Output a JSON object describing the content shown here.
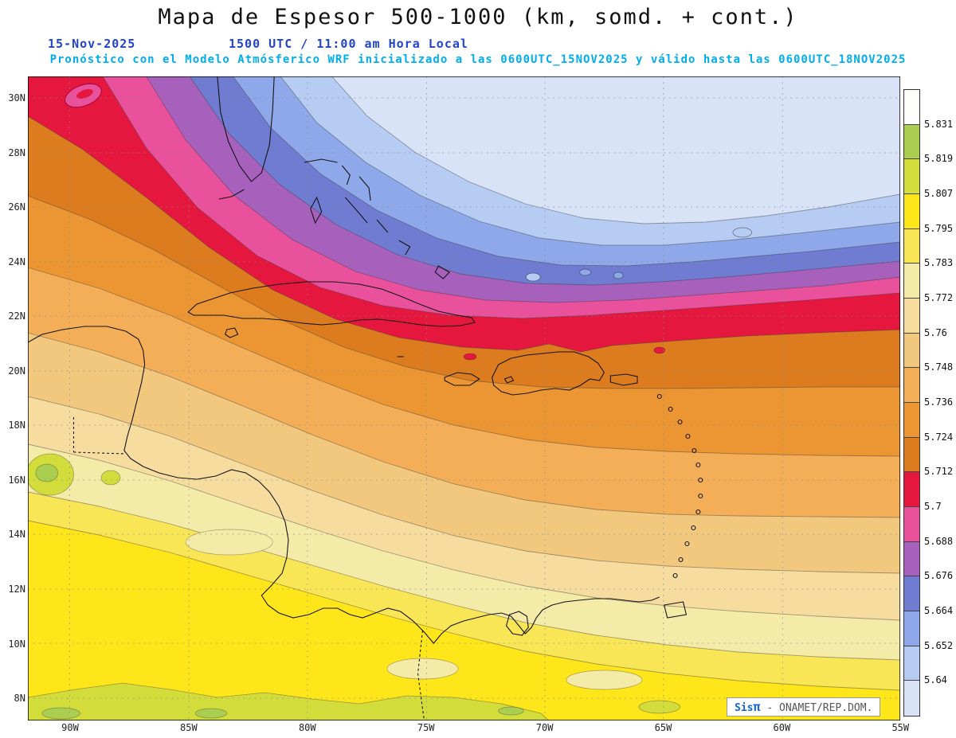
{
  "header": {
    "title": "Mapa de Espesor 500-1000 (km, somd. + cont.)",
    "date": "15-Nov-2025",
    "time": "1500 UTC / 11:00 am Hora Local",
    "forecast_line": "Pronóstico con el Modelo Atmósferico WRF inicializado a las 0600UTC_15NOV2025 y válido hasta las 0600UTC_18NOV2025"
  },
  "map": {
    "lat_labels": [
      "30N",
      "28N",
      "26N",
      "24N",
      "22N",
      "20N",
      "18N",
      "16N",
      "14N",
      "12N",
      "10N",
      "8N"
    ],
    "lon_labels": [
      "90W",
      "85W",
      "80W",
      "75W",
      "70W",
      "65W",
      "60W",
      "55W"
    ]
  },
  "colorbar": {
    "labels_top_to_bottom": [
      "5.831",
      "5.819",
      "5.807",
      "5.795",
      "5.783",
      "5.772",
      "5.76",
      "5.748",
      "5.736",
      "5.724",
      "5.712",
      "5.7",
      "5.688",
      "5.676",
      "5.664",
      "5.652",
      "5.64"
    ],
    "band_colors_low_to_high": [
      "#D8E3F8",
      "#B7CCF3",
      "#8EA8EA",
      "#6F7CD2",
      "#A760BC",
      "#E9519C",
      "#E6173E",
      "#DC7C1E",
      "#EC9633",
      "#F3AE57",
      "#F2C87E",
      "#F6DC9E",
      "#F5EBA9",
      "#F9E657",
      "#FFE61A",
      "#D2DC3A",
      "#AACF50",
      "#FDFDFB"
    ]
  },
  "credit": {
    "brand": "Sis",
    "pi": "π",
    "text": "- ONAMET/REP.DOM."
  },
  "colors": {
    "title_text": "#111111",
    "datetime_text": "#2244C8",
    "forecast_text": "#00AEEF",
    "coastline": "#141414",
    "grid": "#888888"
  }
}
